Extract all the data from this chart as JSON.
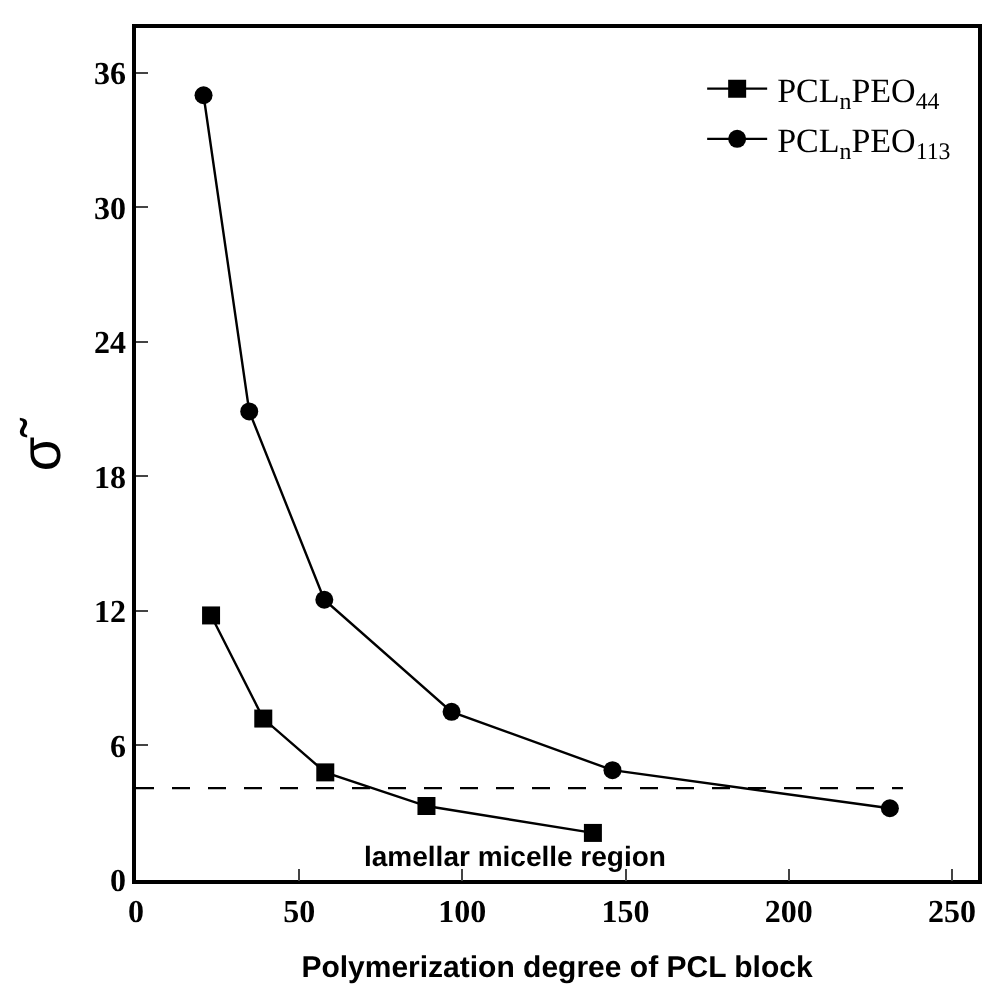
{
  "chart_data": {
    "type": "line",
    "xlabel": "Polymerization degree of PCL block",
    "ylabel": "σ̃",
    "xlim": [
      0,
      258
    ],
    "ylim": [
      0,
      38
    ],
    "xticks": [
      0,
      50,
      100,
      150,
      200,
      250
    ],
    "yticks": [
      0,
      6,
      12,
      18,
      24,
      30,
      36
    ],
    "legend": "top right",
    "series": [
      {
        "name": "PCL$_{n}$PEO$_{44}$",
        "color": "#000000",
        "marker": "square",
        "x": [
          23,
          39,
          58,
          89,
          140
        ],
        "values": [
          11.8,
          7.2,
          4.8,
          3.3,
          2.1
        ]
      },
      {
        "name": "PCL$_{n}$PEO$_{113}$",
        "color": "#000000",
        "marker": "circle",
        "x": [
          20.7,
          34.7,
          57.7,
          96.7,
          146,
          231
        ],
        "values": [
          35.0,
          20.9,
          12.5,
          7.5,
          4.9,
          3.2
        ]
      },
      {
        "color": "#000000",
        "marker": "none",
        "line_style": "dashed",
        "x": [
          0,
          235
        ],
        "values": [
          4.1,
          4.1
        ]
      }
    ],
    "annotations": [
      "lamellar micelle region"
    ]
  }
}
